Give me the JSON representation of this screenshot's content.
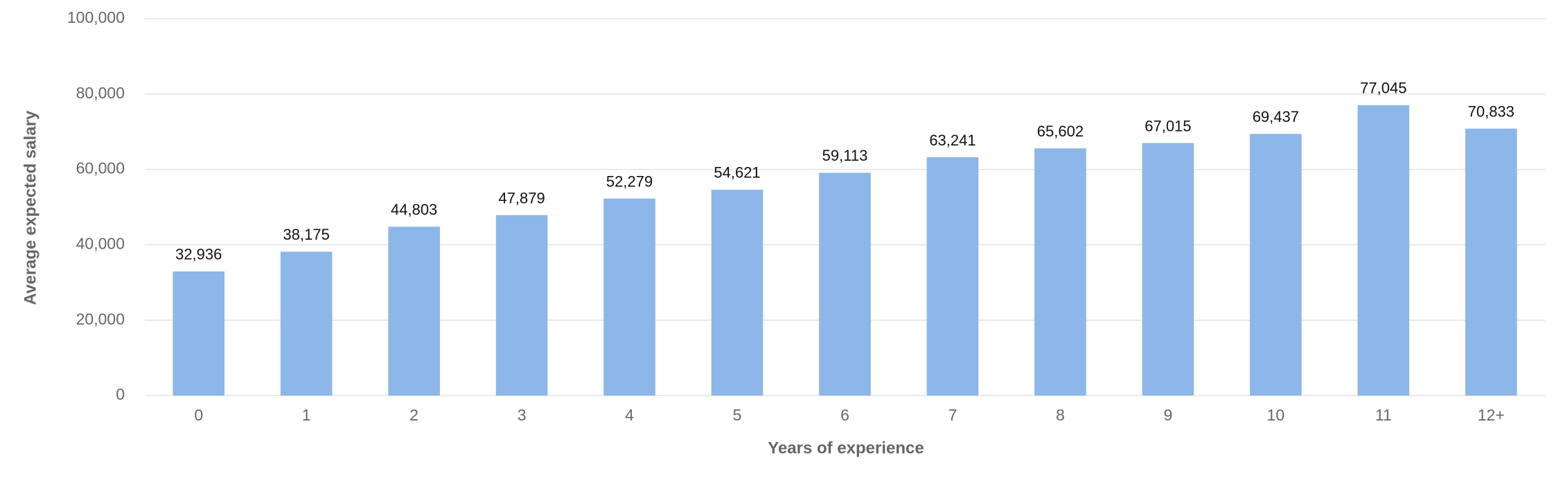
{
  "chart_data": {
    "type": "bar",
    "x_label": "Years of experience",
    "y_label": "Average expected salary",
    "categories": [
      "0",
      "1",
      "2",
      "3",
      "4",
      "5",
      "6",
      "7",
      "8",
      "9",
      "10",
      "11",
      "12+"
    ],
    "values": [
      32936,
      38175,
      44803,
      47879,
      52279,
      54621,
      59113,
      63241,
      65602,
      67015,
      69437,
      77045,
      70833
    ],
    "value_labels": [
      "32,936",
      "38,175",
      "44,803",
      "47,879",
      "52,279",
      "54,621",
      "59,113",
      "63,241",
      "65,602",
      "67,015",
      "69,437",
      "77,045",
      "70,833"
    ],
    "color": "#8cb7e8",
    "ylim": [
      0,
      100000
    ],
    "yticks": [
      0,
      {
        "value": 20000,
        "label": "20,000"
      },
      {
        "value": 40000,
        "label": "40,000"
      },
      {
        "value": 60000,
        "label": "60,000"
      },
      {
        "value": 80000,
        "label": "80,000"
      },
      {
        "value": 100000,
        "label": "100,000"
      }
    ],
    "grid": true
  }
}
